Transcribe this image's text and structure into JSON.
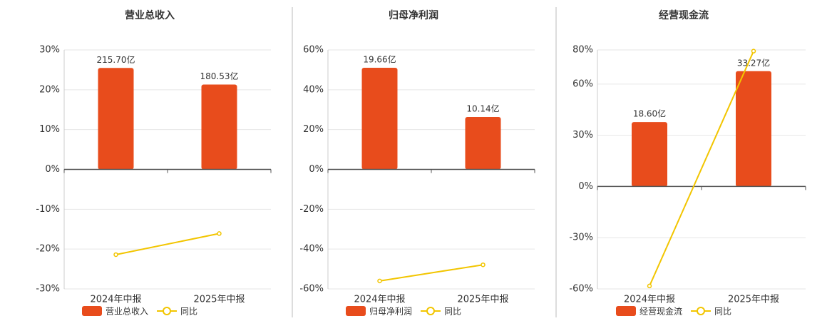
{
  "chart_data": [
    {
      "type": "bar",
      "title": "营业总收入",
      "categories": [
        "2024年中报",
        "2025年中报"
      ],
      "series": [
        {
          "name": "营业总收入",
          "type": "bar",
          "axis": "y2",
          "color": "#e84c1c",
          "values": [
            215.7,
            180.53
          ],
          "value_labels": [
            "215.70亿",
            "180.53亿"
          ]
        },
        {
          "name": "同比",
          "type": "line",
          "color": "#f2c500",
          "values": [
            -21.4,
            -16.1
          ]
        }
      ],
      "ylim": [
        -30,
        30
      ],
      "y2lim": [
        -254,
        254
      ],
      "yticks": [
        {
          "value": 30,
          "label": "30%"
        },
        {
          "value": 20,
          "label": "20%"
        },
        {
          "value": 10,
          "label": "10%"
        },
        {
          "value": 0,
          "label": "0%"
        },
        {
          "value": -10,
          "label": "-10%"
        },
        {
          "value": -20,
          "label": "-20%"
        },
        {
          "value": -30,
          "label": "-30%"
        }
      ],
      "grid": true
    },
    {
      "type": "bar",
      "title": "归母净利润",
      "categories": [
        "2024年中报",
        "2025年中报"
      ],
      "series": [
        {
          "name": "归母净利润",
          "type": "bar",
          "axis": "y2",
          "color": "#e84c1c",
          "values": [
            19.66,
            10.14
          ],
          "value_labels": [
            "19.66亿",
            "10.14亿"
          ]
        },
        {
          "name": "同比",
          "type": "line",
          "color": "#f2c500",
          "values": [
            -56.0,
            -47.9
          ]
        }
      ],
      "ylim": [
        -60,
        60
      ],
      "y2lim": [
        -23.1,
        23.1
      ],
      "yticks": [
        {
          "value": 60,
          "label": "60%"
        },
        {
          "value": 40,
          "label": "40%"
        },
        {
          "value": 20,
          "label": "20%"
        },
        {
          "value": 0,
          "label": "0%"
        },
        {
          "value": -20,
          "label": "-20%"
        },
        {
          "value": -40,
          "label": "-40%"
        },
        {
          "value": -60,
          "label": "-60%"
        }
      ],
      "grid": true
    },
    {
      "type": "bar",
      "title": "经营现金流",
      "categories": [
        "2024年中报",
        "2025年中报"
      ],
      "series": [
        {
          "name": "经营现金流",
          "type": "bar",
          "axis": "y2",
          "color": "#e84c1c",
          "values": [
            18.6,
            33.27
          ],
          "value_labels": [
            "18.60亿",
            "33.27亿"
          ]
        },
        {
          "name": "同比",
          "type": "line",
          "color": "#f2c500",
          "values": [
            -58.3,
            79.3
          ]
        }
      ],
      "ylim": [
        -60,
        80
      ],
      "y2lim": [
        -29.5,
        39.4
      ],
      "yticks": [
        {
          "value": 80,
          "label": "80%"
        },
        {
          "value": 60,
          "label": "60%"
        },
        {
          "value": 30,
          "label": "30%"
        },
        {
          "value": 0,
          "label": "0%"
        },
        {
          "value": -30,
          "label": "-30%"
        },
        {
          "value": -60,
          "label": "-60%"
        }
      ],
      "grid": true
    }
  ]
}
